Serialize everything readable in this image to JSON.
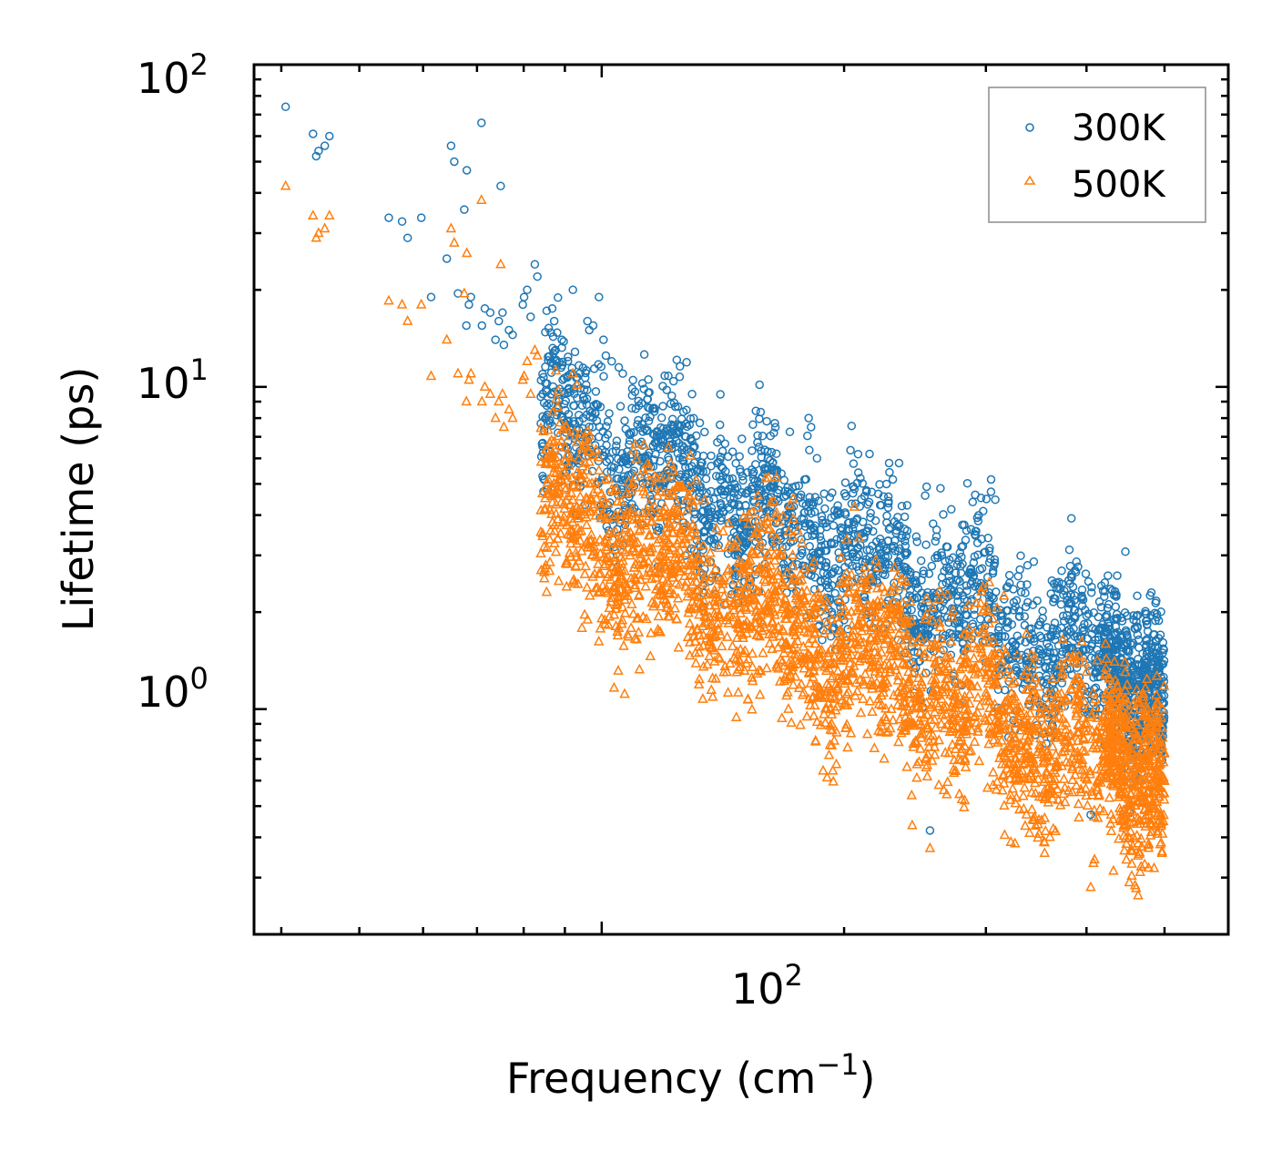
{
  "chart_data": {
    "type": "scatter",
    "title": "",
    "xlabel": "Frequency (cm",
    "xlabel_sup": "−1",
    "xlabel_tail": ")",
    "ylabel": "Lifetime (ps)",
    "xscale": "log",
    "yscale": "log",
    "xlim": [
      37,
      600
    ],
    "ylim": [
      0.2,
      100
    ],
    "x_tick_labels": [
      {
        "base": "10",
        "exp": "2"
      }
    ],
    "y_tick_labels": [
      {
        "base": "10",
        "exp": "0"
      },
      {
        "base": "10",
        "exp": "1"
      },
      {
        "base": "10",
        "exp": "2"
      }
    ],
    "legend_position": "top-right",
    "series": [
      {
        "name": "300K",
        "marker": "circle",
        "color": "#1f77b4",
        "points": [
          [
            40.5,
            74
          ],
          [
            43.8,
            61
          ],
          [
            44.2,
            52
          ],
          [
            44.5,
            54
          ],
          [
            45.3,
            56
          ],
          [
            45.9,
            60
          ],
          [
            54.4,
            33.5
          ],
          [
            56.5,
            32.6
          ],
          [
            57.4,
            29
          ],
          [
            59.7,
            33.5
          ],
          [
            61.4,
            19
          ],
          [
            64.2,
            25
          ],
          [
            65.0,
            56
          ],
          [
            65.6,
            50
          ],
          [
            66.3,
            19.5
          ],
          [
            67.5,
            35.5
          ],
          [
            68.0,
            47
          ],
          [
            67.9,
            15.5
          ],
          [
            68.4,
            18
          ],
          [
            68.8,
            19
          ],
          [
            70.9,
            66
          ],
          [
            71.0,
            15.5
          ],
          [
            71.6,
            17.5
          ],
          [
            72.7,
            17
          ],
          [
            73.8,
            14
          ],
          [
            74.5,
            16
          ],
          [
            74.9,
            42
          ],
          [
            75.3,
            17
          ],
          [
            75.6,
            13.5
          ],
          [
            76.7,
            15
          ],
          [
            77.5,
            14.5
          ],
          [
            79.8,
            18
          ],
          [
            80.1,
            19
          ],
          [
            80.8,
            20
          ],
          [
            81.6,
            16.5
          ],
          [
            82.6,
            24
          ],
          [
            83.2,
            22
          ],
          [
            86.8,
            17.5
          ],
          [
            87.3,
            16
          ],
          [
            92.1,
            20
          ],
          [
            96.0,
            16
          ],
          [
            96.5,
            15
          ],
          [
            97.6,
            15.5
          ],
          [
            99.2,
            19
          ],
          [
            100.5,
            14
          ],
          [
            102.9,
            12
          ],
          [
            105.0,
            11.5
          ],
          [
            101.2,
            12.5
          ],
          [
            106.2,
            11
          ],
          [
            120.5,
            5.5
          ],
          [
            180.7,
            8
          ],
          [
            182.0,
            7.5
          ],
          [
            185.1,
            6
          ],
          [
            227.5,
            5.8
          ],
          [
            234.0,
            5.8
          ],
          [
            253.2,
            4.9
          ],
          [
            252.2,
            4.6
          ],
          [
            260.6,
            3.6
          ],
          [
            255.7,
            0.42
          ],
          [
            302.0,
            1.9
          ],
          [
            326.5,
            1.5
          ],
          [
            364.5,
            2.45
          ],
          [
            363.8,
            2.15
          ],
          [
            384.1,
            1.55
          ],
          [
            404.8,
            0.47
          ],
          [
            466.4,
            1.3
          ]
        ]
      },
      {
        "name": "500K",
        "marker": "triangle",
        "color": "#ff7f0e",
        "points": [
          [
            40.5,
            42
          ],
          [
            43.8,
            34
          ],
          [
            44.2,
            29
          ],
          [
            44.5,
            30
          ],
          [
            45.3,
            31
          ],
          [
            45.9,
            34
          ],
          [
            54.4,
            18.5
          ],
          [
            56.5,
            18
          ],
          [
            57.4,
            16
          ],
          [
            59.7,
            18
          ],
          [
            61.4,
            10.8
          ],
          [
            64.2,
            14
          ],
          [
            65.0,
            31
          ],
          [
            65.6,
            28
          ],
          [
            66.3,
            11
          ],
          [
            67.5,
            19.5
          ],
          [
            68.0,
            26
          ],
          [
            67.9,
            9
          ],
          [
            68.4,
            10.5
          ],
          [
            68.8,
            11
          ],
          [
            70.9,
            38
          ],
          [
            71.0,
            9
          ],
          [
            71.6,
            10
          ],
          [
            72.7,
            9.5
          ],
          [
            73.8,
            8
          ],
          [
            74.5,
            9
          ],
          [
            74.9,
            24
          ],
          [
            75.3,
            9.5
          ],
          [
            75.6,
            7.5
          ],
          [
            76.7,
            8.5
          ],
          [
            77.5,
            8
          ],
          [
            79.8,
            10.5
          ],
          [
            80.1,
            10.8
          ],
          [
            80.8,
            12
          ],
          [
            81.6,
            9.5
          ],
          [
            82.6,
            13
          ],
          [
            83.2,
            12.5
          ],
          [
            86.8,
            6
          ],
          [
            87.3,
            5
          ],
          [
            92.1,
            11
          ],
          [
            96.0,
            5.5
          ],
          [
            96.5,
            5
          ],
          [
            99.2,
            5.5
          ],
          [
            100.5,
            4.5
          ],
          [
            120.5,
            2.5
          ],
          [
            253.2,
            2.2
          ],
          [
            252.2,
            1.9
          ],
          [
            255.7,
            0.37
          ],
          [
            302.0,
            1.2
          ],
          [
            326.5,
            0.9
          ],
          [
            384.1,
            0.7
          ],
          [
            404.8,
            0.28
          ],
          [
            466.4,
            0.45
          ]
        ]
      }
    ],
    "clusters": [
      {
        "series": 0,
        "freq_range": [
          84,
          500
        ],
        "y_start": 8.0,
        "y_end": 1.15,
        "spread": 0.24,
        "count": 2300
      },
      {
        "series": 0,
        "freq_range": [
          420,
          500
        ],
        "y_start": 1.5,
        "y_end": 1.15,
        "spread": 0.16,
        "count": 320
      },
      {
        "series": 1,
        "freq_range": [
          84,
          500
        ],
        "y_start": 4.2,
        "y_end": 0.55,
        "spread": 0.28,
        "count": 2600
      },
      {
        "series": 1,
        "freq_range": [
          420,
          500
        ],
        "y_start": 0.85,
        "y_end": 0.65,
        "spread": 0.2,
        "count": 320
      }
    ]
  }
}
